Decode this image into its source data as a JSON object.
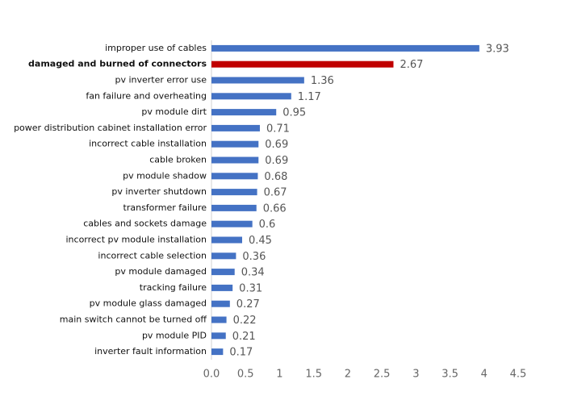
{
  "chart_data": {
    "type": "hbar",
    "categories": [
      "improper use of cables",
      "damaged and burned of connectors",
      "pv inverter error use",
      "fan failure and overheating",
      "pv module dirt",
      "power distribution cabinet installation error",
      "incorrect cable installation",
      "cable broken",
      "pv module shadow",
      "pv inverter shutdown",
      "transformer failure",
      "cables and sockets damage",
      "incorrect pv module installation",
      "incorrect cable selection",
      "pv module damaged",
      "tracking failure",
      "pv module glass damaged",
      "main switch cannot be turned off",
      "pv module PID",
      "inverter fault information"
    ],
    "values": [
      3.93,
      2.67,
      1.36,
      1.17,
      0.95,
      0.71,
      0.69,
      0.69,
      0.68,
      0.67,
      0.66,
      0.6,
      0.45,
      0.36,
      0.34,
      0.31,
      0.27,
      0.22,
      0.21,
      0.17
    ],
    "color": "#4472c4",
    "colors": [
      "#4472c4",
      "#c00000",
      "#4472c4",
      "#4472c4",
      "#4472c4",
      "#4472c4",
      "#4472c4",
      "#4472c4",
      "#4472c4",
      "#4472c4",
      "#4472c4",
      "#4472c4",
      "#4472c4",
      "#4472c4",
      "#4472c4",
      "#4472c4",
      "#4472c4",
      "#4472c4",
      "#4472c4",
      "#4472c4"
    ],
    "xlim": [
      0,
      4.5
    ],
    "xticks": [
      {
        "value": 0,
        "label": "0.0"
      },
      0.5,
      1,
      1.5,
      2,
      2.5,
      3,
      3.5,
      4,
      4.5
    ],
    "grid": false
  }
}
